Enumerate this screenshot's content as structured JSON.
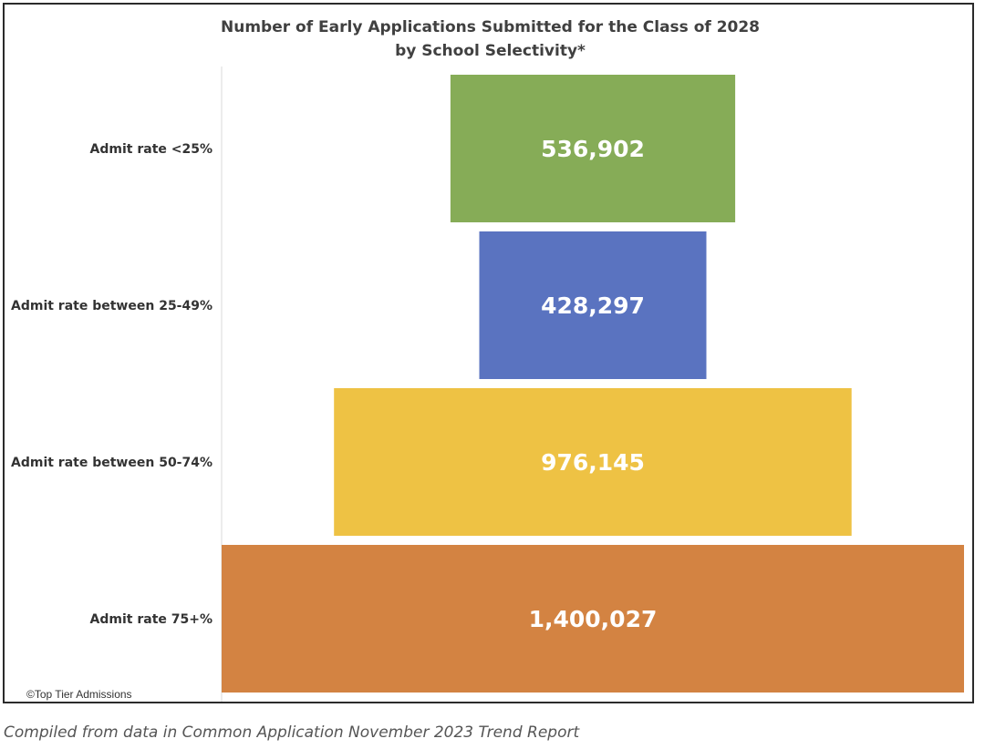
{
  "chart_data": {
    "type": "bar",
    "subtype": "funnel",
    "title": "Number of Early Applications Submitted for the Class of 2028",
    "subtitle": "by School Selectivity*",
    "categories": [
      "Admit rate <25%",
      "Admit rate between 25-49%",
      "Admit rate between 50-74%",
      "Admit rate 75+%"
    ],
    "values": [
      536902,
      428297,
      976145,
      1400027
    ],
    "value_labels": [
      "536,902",
      "428,297",
      "976,145",
      "1,400,027"
    ],
    "colors": [
      "#86AC57",
      "#5A73C0",
      "#EEC244",
      "#D38342"
    ],
    "xlabel": "",
    "ylabel": "",
    "grid": false,
    "legend": "none"
  },
  "copyright": "©Top Tier Admissions",
  "caption": "Compiled from data in Common Application November 2023 Trend Report"
}
